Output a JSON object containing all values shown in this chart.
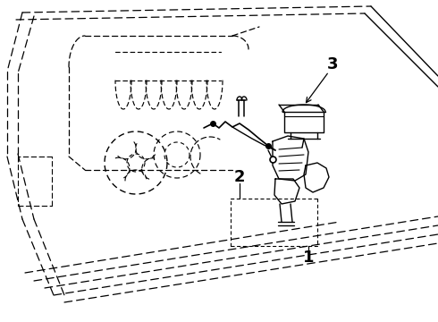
{
  "background_color": "#ffffff",
  "line_color": "#000000",
  "label_1": "1",
  "label_2": "2",
  "label_3": "3",
  "figsize": [
    4.9,
    3.6
  ],
  "dpi": 100,
  "lw_main": 1.1,
  "lw_thin": 0.8,
  "dash_long": [
    7,
    4
  ],
  "dash_med": [
    5,
    3
  ],
  "dash_short": [
    3,
    3
  ]
}
